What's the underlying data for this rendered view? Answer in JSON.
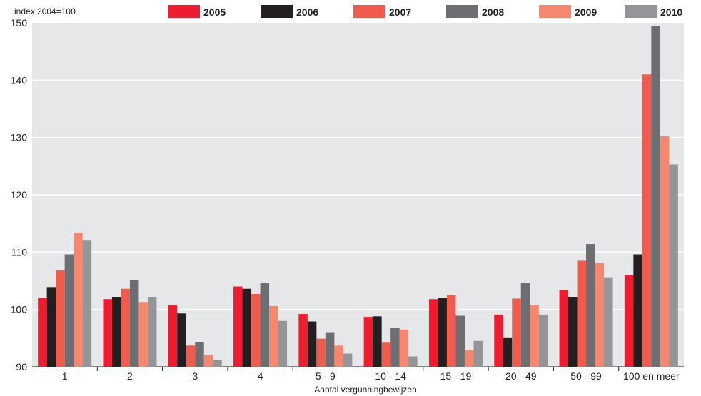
{
  "chart_data": {
    "type": "bar",
    "ylabel": "index 2004=100",
    "xlabel": "Aantal vergunningbewijzen",
    "ylim": [
      90,
      150
    ],
    "yticks": [
      90,
      100,
      110,
      120,
      130,
      140,
      150
    ],
    "grid": true,
    "legend_position": "top",
    "categories": [
      "1",
      "2",
      "3",
      "4",
      "5 - 9",
      "10 - 14",
      "15 - 19",
      "20 - 49",
      "50 - 99",
      "100 en meer"
    ],
    "series": [
      {
        "name": "2005",
        "color": "#ed1c2e",
        "values": [
          102.0,
          101.8,
          100.7,
          104.0,
          99.2,
          98.7,
          101.8,
          99.1,
          103.4,
          106.0
        ]
      },
      {
        "name": "2006",
        "color": "#231f20",
        "values": [
          103.9,
          102.2,
          99.3,
          103.6,
          97.9,
          98.8,
          102.0,
          95.0,
          102.2,
          109.6
        ]
      },
      {
        "name": "2007",
        "color": "#ef5b4d",
        "values": [
          106.8,
          103.6,
          93.7,
          102.7,
          94.9,
          94.2,
          102.5,
          101.9,
          108.5,
          141.0
        ]
      },
      {
        "name": "2008",
        "color": "#6d6e71",
        "values": [
          109.6,
          105.1,
          94.3,
          104.6,
          95.9,
          96.8,
          98.9,
          104.6,
          111.4,
          149.5
        ]
      },
      {
        "name": "2009",
        "color": "#f5876f",
        "values": [
          113.4,
          101.3,
          92.1,
          100.6,
          93.7,
          96.5,
          92.9,
          100.8,
          108.1,
          130.2
        ]
      },
      {
        "name": "2010",
        "color": "#939598",
        "values": [
          112.0,
          102.2,
          91.2,
          98.0,
          92.3,
          91.8,
          94.5,
          99.1,
          105.6,
          125.3
        ]
      }
    ]
  }
}
